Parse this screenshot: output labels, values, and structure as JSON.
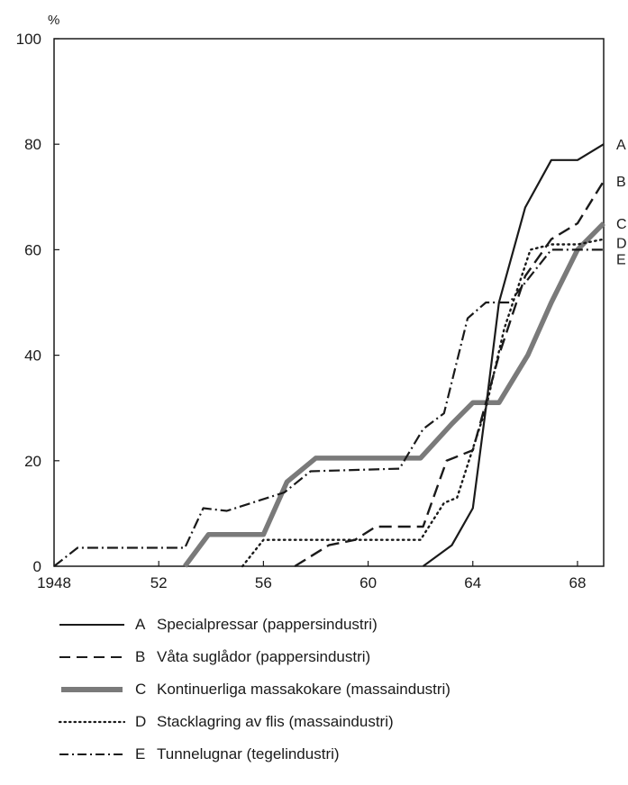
{
  "chart_data": {
    "type": "line",
    "ylabel": "%",
    "xlim": [
      1948,
      1969
    ],
    "ylim": [
      0,
      100
    ],
    "xticks": [
      {
        "value": 1948,
        "label": "1948"
      },
      {
        "value": 1952,
        "label": "52"
      },
      {
        "value": 1956,
        "label": "56"
      },
      {
        "value": 1960,
        "label": "60"
      },
      {
        "value": 1964,
        "label": "64"
      },
      {
        "value": 1968,
        "label": "68"
      }
    ],
    "yticks": [
      {
        "value": 0,
        "label": "0"
      },
      {
        "value": 20,
        "label": "20"
      },
      {
        "value": 40,
        "label": "40"
      },
      {
        "value": 60,
        "label": "60"
      },
      {
        "value": 80,
        "label": "80"
      },
      {
        "value": 100,
        "label": "100"
      }
    ],
    "grid": false,
    "legend_position": "bottom",
    "series": [
      {
        "letter": "A",
        "name": "Specialpressar (pappersindustri)",
        "style": "solid",
        "color": "#1a1a1a",
        "points": [
          [
            1962.1,
            0
          ],
          [
            1963.2,
            4
          ],
          [
            1964.0,
            11
          ],
          [
            1964.5,
            30
          ],
          [
            1965.0,
            50
          ],
          [
            1966.0,
            68
          ],
          [
            1967.0,
            77
          ],
          [
            1968.0,
            77
          ],
          [
            1969.0,
            80
          ]
        ]
      },
      {
        "letter": "B",
        "name": "Våta suglådor (pappersindustri)",
        "style": "dashed",
        "color": "#1a1a1a",
        "points": [
          [
            1957.2,
            0
          ],
          [
            1958.5,
            4
          ],
          [
            1959.5,
            5
          ],
          [
            1960.3,
            7.5
          ],
          [
            1961.5,
            7.5
          ],
          [
            1962.1,
            7.5
          ],
          [
            1963.0,
            20
          ],
          [
            1964.0,
            22
          ],
          [
            1965.0,
            40
          ],
          [
            1966.0,
            55
          ],
          [
            1967.0,
            62
          ],
          [
            1968.0,
            65
          ],
          [
            1969.0,
            73
          ]
        ]
      },
      {
        "letter": "C",
        "name": "Kontinuerliga massakokare (massaindustri)",
        "style": "thick",
        "color": "#7a7a7a",
        "points": [
          [
            1953.0,
            0
          ],
          [
            1953.9,
            6
          ],
          [
            1956.0,
            6
          ],
          [
            1956.9,
            16
          ],
          [
            1958.0,
            20.5
          ],
          [
            1962.0,
            20.5
          ],
          [
            1963.2,
            27
          ],
          [
            1964.0,
            31
          ],
          [
            1965.0,
            31
          ],
          [
            1966.1,
            40
          ],
          [
            1967.0,
            50
          ],
          [
            1968.0,
            60
          ],
          [
            1969.0,
            65
          ]
        ]
      },
      {
        "letter": "D",
        "name": "Stacklagring av flis (massaindustri)",
        "style": "dotted",
        "color": "#1a1a1a",
        "points": [
          [
            1955.2,
            0
          ],
          [
            1956.0,
            5
          ],
          [
            1962.0,
            5
          ],
          [
            1962.9,
            12
          ],
          [
            1963.4,
            13
          ],
          [
            1964.5,
            30
          ],
          [
            1965.2,
            45
          ],
          [
            1966.2,
            60
          ],
          [
            1967.0,
            61
          ],
          [
            1968.0,
            61
          ],
          [
            1969.0,
            62
          ]
        ]
      },
      {
        "letter": "E",
        "name": "Tunnelugnar (tegelindustri)",
        "style": "dashdot",
        "color": "#1a1a1a",
        "points": [
          [
            1948.0,
            0
          ],
          [
            1948.9,
            3.5
          ],
          [
            1953.0,
            3.5
          ],
          [
            1953.7,
            11
          ],
          [
            1954.6,
            10.5
          ],
          [
            1956.8,
            14
          ],
          [
            1957.8,
            18
          ],
          [
            1961.2,
            18.5
          ],
          [
            1962.1,
            26
          ],
          [
            1962.9,
            29
          ],
          [
            1963.8,
            47
          ],
          [
            1964.5,
            50
          ],
          [
            1965.4,
            50
          ],
          [
            1966.2,
            55
          ],
          [
            1967.0,
            60
          ],
          [
            1968.0,
            60
          ],
          [
            1969.0,
            60
          ]
        ]
      }
    ]
  }
}
